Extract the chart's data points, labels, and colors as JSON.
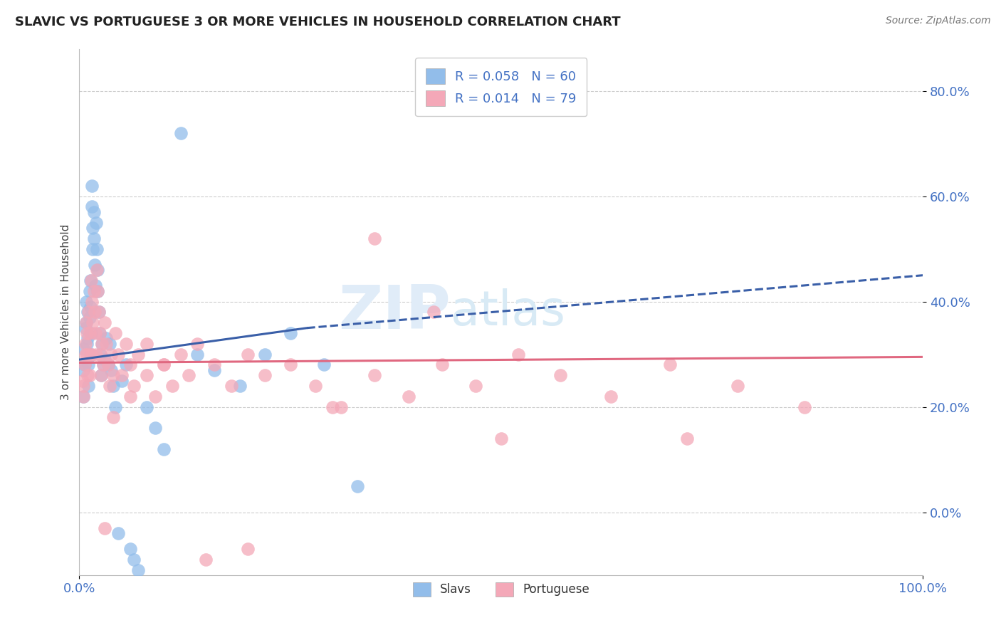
{
  "title": "SLAVIC VS PORTUGUESE 3 OR MORE VEHICLES IN HOUSEHOLD CORRELATION CHART",
  "source": "Source: ZipAtlas.com",
  "ylabel": "3 or more Vehicles in Household",
  "xlim": [
    0,
    1.0
  ],
  "ylim": [
    -0.12,
    0.88
  ],
  "yticks": [
    0.0,
    0.2,
    0.4,
    0.6,
    0.8
  ],
  "ytick_labels": [
    "0.0%",
    "20.0%",
    "40.0%",
    "60.0%",
    "80.0%"
  ],
  "xticks": [
    0.0,
    1.0
  ],
  "xtick_labels": [
    "0.0%",
    "100.0%"
  ],
  "legend_slavs_R": "R = 0.058",
  "legend_slavs_N": "N = 60",
  "legend_port_R": "R = 0.014",
  "legend_port_N": "N = 79",
  "slavs_color": "#92BDEA",
  "port_color": "#F4A8B8",
  "slavs_line_color": "#3A5FA8",
  "port_line_color": "#E06880",
  "watermark_zip": "ZIP",
  "watermark_atlas": "atlas",
  "slavs_x": [
    0.005,
    0.005,
    0.005,
    0.006,
    0.007,
    0.008,
    0.008,
    0.009,
    0.01,
    0.01,
    0.011,
    0.011,
    0.012,
    0.012,
    0.013,
    0.013,
    0.014,
    0.014,
    0.015,
    0.015,
    0.016,
    0.016,
    0.017,
    0.017,
    0.018,
    0.019,
    0.02,
    0.021,
    0.022,
    0.022,
    0.023,
    0.024,
    0.025,
    0.026,
    0.027,
    0.028,
    0.03,
    0.032,
    0.034,
    0.036,
    0.038,
    0.04,
    0.043,
    0.046,
    0.05,
    0.055,
    0.06,
    0.065,
    0.07,
    0.08,
    0.09,
    0.1,
    0.12,
    0.14,
    0.16,
    0.19,
    0.22,
    0.25,
    0.29,
    0.33
  ],
  "slavs_y": [
    0.31,
    0.27,
    0.22,
    0.28,
    0.35,
    0.4,
    0.36,
    0.32,
    0.38,
    0.33,
    0.28,
    0.24,
    0.42,
    0.37,
    0.44,
    0.39,
    0.34,
    0.3,
    0.62,
    0.58,
    0.54,
    0.5,
    0.57,
    0.52,
    0.47,
    0.43,
    0.55,
    0.5,
    0.46,
    0.42,
    0.38,
    0.34,
    0.3,
    0.26,
    0.32,
    0.28,
    0.29,
    0.33,
    0.28,
    0.32,
    0.27,
    0.24,
    0.2,
    -0.04,
    0.25,
    0.28,
    -0.07,
    -0.09,
    -0.11,
    0.2,
    0.16,
    0.12,
    0.72,
    0.3,
    0.27,
    0.24,
    0.3,
    0.34,
    0.28,
    0.05
  ],
  "port_x": [
    0.004,
    0.005,
    0.006,
    0.007,
    0.008,
    0.009,
    0.01,
    0.011,
    0.012,
    0.013,
    0.014,
    0.015,
    0.016,
    0.017,
    0.018,
    0.019,
    0.02,
    0.021,
    0.022,
    0.023,
    0.024,
    0.025,
    0.026,
    0.027,
    0.028,
    0.03,
    0.032,
    0.034,
    0.036,
    0.038,
    0.04,
    0.043,
    0.046,
    0.05,
    0.055,
    0.06,
    0.065,
    0.07,
    0.08,
    0.09,
    0.1,
    0.11,
    0.12,
    0.13,
    0.14,
    0.16,
    0.18,
    0.2,
    0.22,
    0.25,
    0.28,
    0.31,
    0.35,
    0.39,
    0.43,
    0.47,
    0.52,
    0.57,
    0.63,
    0.7,
    0.78,
    0.86,
    0.2,
    0.35,
    0.42,
    0.3,
    0.15,
    0.1,
    0.08,
    0.06,
    0.04,
    0.03,
    0.015,
    0.012,
    0.009,
    0.007,
    0.005,
    0.5,
    0.72
  ],
  "port_y": [
    0.25,
    0.22,
    0.28,
    0.32,
    0.36,
    0.3,
    0.26,
    0.38,
    0.34,
    0.3,
    0.44,
    0.4,
    0.36,
    0.42,
    0.38,
    0.34,
    0.3,
    0.46,
    0.42,
    0.38,
    0.34,
    0.3,
    0.26,
    0.32,
    0.28,
    0.36,
    0.32,
    0.28,
    0.24,
    0.3,
    0.26,
    0.34,
    0.3,
    0.26,
    0.32,
    0.28,
    0.24,
    0.3,
    0.26,
    0.22,
    0.28,
    0.24,
    0.3,
    0.26,
    0.32,
    0.28,
    0.24,
    0.3,
    0.26,
    0.28,
    0.24,
    0.2,
    0.26,
    0.22,
    0.28,
    0.24,
    0.3,
    0.26,
    0.22,
    0.28,
    0.24,
    0.2,
    -0.07,
    0.52,
    0.38,
    0.2,
    -0.09,
    0.28,
    0.32,
    0.22,
    0.18,
    -0.03,
    0.3,
    0.26,
    0.34,
    0.3,
    0.24,
    0.14,
    0.14
  ]
}
